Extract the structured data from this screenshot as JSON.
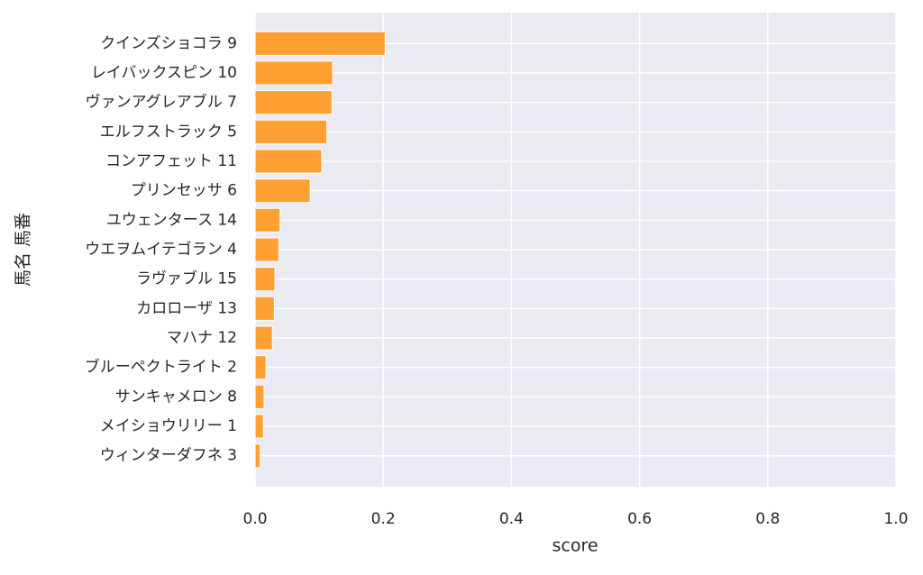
{
  "chart_data": {
    "type": "barh",
    "xlabel": "score",
    "ylabel": "馬名 馬番",
    "categories": [
      "クインズショコラ 9",
      "レイバックスピン 10",
      "ヴァンアグレアブル 7",
      "エルフストラック 5",
      "コンアフェット 11",
      "プリンセッサ 6",
      "ユウェンタース 14",
      "ウエヲムイテゴラン 4",
      "ラヴァブル 15",
      "カロローザ 13",
      "マハナ 12",
      "ブルーペクトライト 2",
      "サンキャメロン 8",
      "メイショウリリー 1",
      "ウィンターダフネ 3"
    ],
    "values": [
      0.203,
      0.121,
      0.12,
      0.112,
      0.104,
      0.086,
      0.039,
      0.037,
      0.031,
      0.03,
      0.027,
      0.017,
      0.014,
      0.013,
      0.008
    ],
    "color": "#ffa033",
    "xlim": [
      0,
      1
    ],
    "xticks": [
      {
        "value": 0,
        "label": "0.0"
      },
      0.2,
      0.4,
      0.6,
      0.8,
      {
        "value": 1,
        "label": "1.0"
      }
    ],
    "grid": true
  }
}
